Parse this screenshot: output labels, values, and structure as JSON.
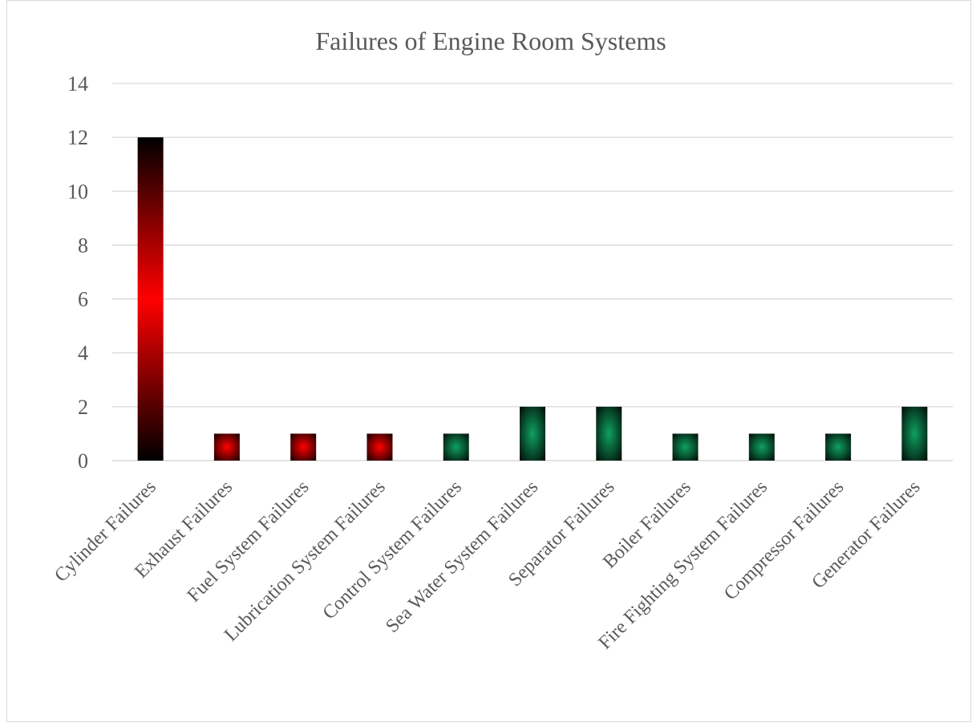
{
  "chart_data": {
    "type": "bar",
    "title": "Failures of Engine Room Systems",
    "xlabel": "",
    "ylabel": "",
    "ylim": [
      0,
      14
    ],
    "yticks": [
      0,
      2,
      4,
      6,
      8,
      10,
      12,
      14
    ],
    "grid": true,
    "legend": "none",
    "categories": [
      "Cylinder Failures",
      "Exhaust Failures",
      "Fuel System Failures",
      "Lubrication System Failures",
      "Control System Failures",
      "Sea Water System Failures",
      "Separator Failures",
      "Boiler Failures",
      "Fire Fighting System Failures",
      "Compressor Failures",
      "Generator Failures"
    ],
    "values": [
      12,
      1,
      1,
      1,
      1,
      2,
      2,
      1,
      1,
      1,
      2
    ],
    "bar_colors": [
      "red",
      "red",
      "red",
      "red",
      "green",
      "green",
      "green",
      "green",
      "green",
      "green",
      "green"
    ],
    "colors": {
      "red": "#ff0000",
      "green": "#0fa060",
      "dark": "#000000"
    }
  }
}
